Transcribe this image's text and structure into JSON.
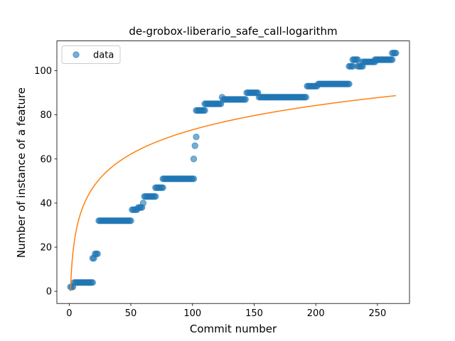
{
  "chart_data": {
    "type": "scatter",
    "title": "de-grobox-liberario_safe_call-logarithm",
    "xlabel": "Commit number",
    "ylabel": "Number of instance of a feature",
    "xlim": [
      -10,
      276
    ],
    "ylim": [
      -5.5,
      113.5
    ],
    "xticks": [
      0,
      50,
      100,
      150,
      200,
      250
    ],
    "yticks": [
      0,
      20,
      40,
      60,
      80,
      100
    ],
    "legend": {
      "entries": [
        "data"
      ],
      "placement": "top-left"
    },
    "colors": {
      "points": "#1f77b4",
      "fit": "#ff7f0e"
    },
    "segments": [
      {
        "x_start": 1,
        "x_end": 2,
        "y": 2
      },
      {
        "x_start": 3,
        "x_end": 3,
        "y": 2
      },
      {
        "x_start": 4,
        "x_end": 19,
        "y": 4
      },
      {
        "x_start": 19,
        "x_end": 20,
        "y": 15
      },
      {
        "x_start": 21,
        "x_end": 23,
        "y": 17
      },
      {
        "x_start": 24,
        "x_end": 50,
        "y": 32
      },
      {
        "x_start": 51,
        "x_end": 55,
        "y": 37
      },
      {
        "x_start": 56,
        "x_end": 59,
        "y": 38
      },
      {
        "x_start": 60,
        "x_end": 60,
        "y": 40
      },
      {
        "x_start": 61,
        "x_end": 70,
        "y": 43
      },
      {
        "x_start": 70,
        "x_end": 76,
        "y": 47
      },
      {
        "x_start": 76,
        "x_end": 101,
        "y": 51
      },
      {
        "x_start": 101,
        "x_end": 101,
        "y": 60
      },
      {
        "x_start": 102,
        "x_end": 102,
        "y": 66
      },
      {
        "x_start": 103,
        "x_end": 103,
        "y": 70
      },
      {
        "x_start": 103,
        "x_end": 110,
        "y": 82
      },
      {
        "x_start": 110,
        "x_end": 123,
        "y": 85
      },
      {
        "x_start": 124,
        "x_end": 124,
        "y": 88
      },
      {
        "x_start": 125,
        "x_end": 143,
        "y": 87
      },
      {
        "x_start": 144,
        "x_end": 153,
        "y": 90
      },
      {
        "x_start": 154,
        "x_end": 192,
        "y": 88
      },
      {
        "x_start": 193,
        "x_end": 201,
        "y": 93
      },
      {
        "x_start": 202,
        "x_end": 227,
        "y": 94
      },
      {
        "x_start": 227,
        "x_end": 230,
        "y": 102
      },
      {
        "x_start": 230,
        "x_end": 234,
        "y": 105
      },
      {
        "x_start": 234,
        "x_end": 238,
        "y": 102
      },
      {
        "x_start": 238,
        "x_end": 248,
        "y": 104
      },
      {
        "x_start": 248,
        "x_end": 262,
        "y": 105
      },
      {
        "x_start": 262,
        "x_end": 265,
        "y": 108
      }
    ],
    "fit": {
      "form": "a + b*ln(x)",
      "a": 0,
      "b": 15.9,
      "x_range": [
        1,
        265
      ]
    }
  }
}
